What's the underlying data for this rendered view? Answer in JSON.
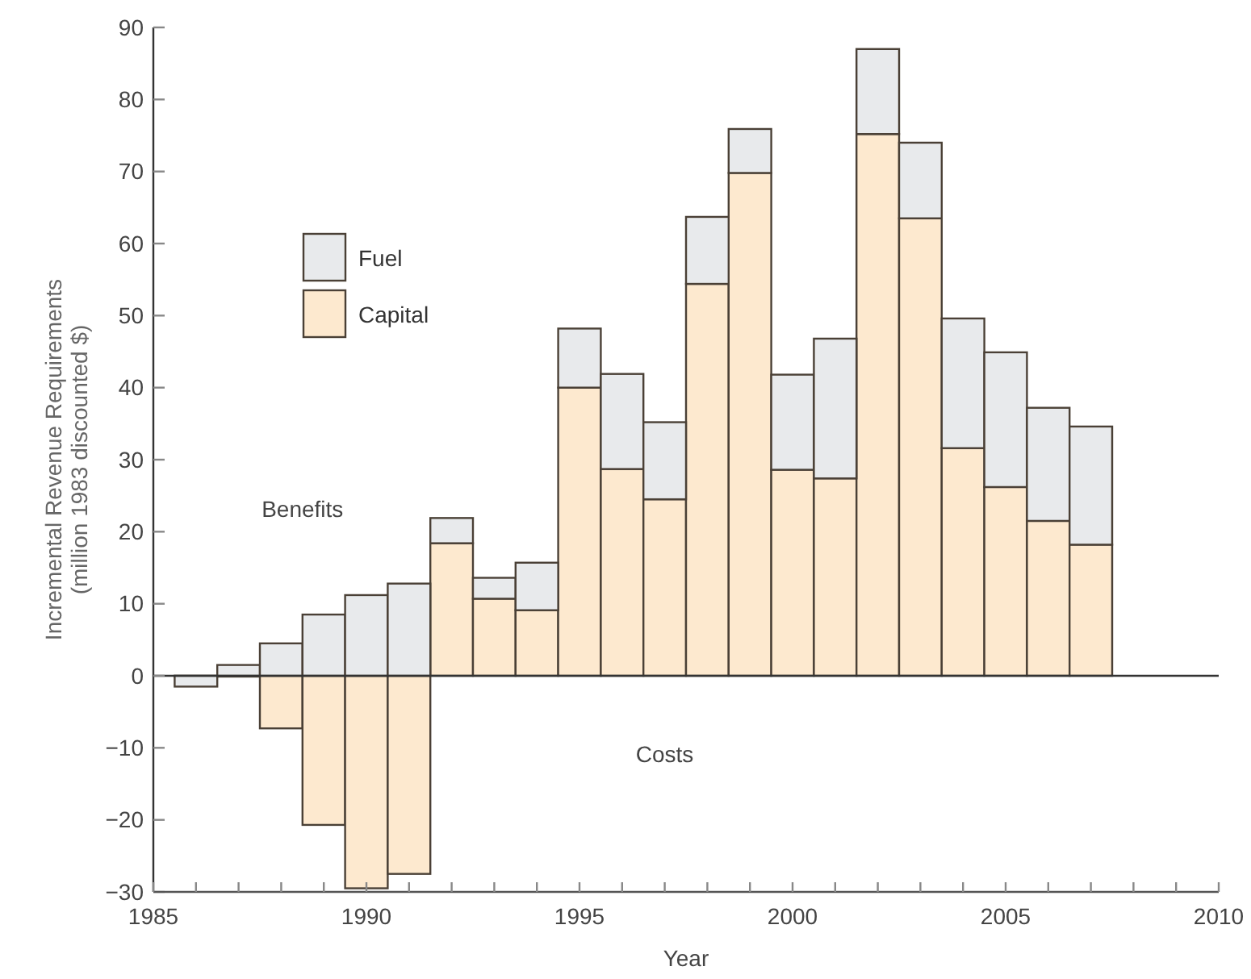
{
  "chart_data": {
    "type": "bar",
    "stacked": true,
    "xlabel": "Year",
    "ylabel": "Incremental Revenue Requirements\n(million 1983 discounted $)",
    "x": [
      1986,
      1987,
      1988,
      1989,
      1990,
      1991,
      1992,
      1993,
      1994,
      1995,
      1996,
      1997,
      1998,
      1999,
      2000,
      2001,
      2002,
      2003,
      2004,
      2005,
      2006,
      2007
    ],
    "series": [
      {
        "name": "Capital",
        "color": "#fde9cf",
        "values": [
          0,
          0,
          -7.3,
          -20.7,
          -29.5,
          -27.5,
          18.4,
          10.7,
          9.1,
          40.0,
          28.7,
          24.5,
          54.4,
          69.8,
          28.6,
          27.4,
          75.2,
          63.5,
          31.6,
          26.2,
          21.5,
          18.2
        ]
      },
      {
        "name": "Fuel",
        "color": "#e8eaec",
        "values": [
          -1.5,
          1.5,
          4.5,
          8.5,
          11.2,
          12.8,
          3.5,
          2.9,
          6.6,
          8.2,
          13.2,
          10.7,
          9.3,
          6.1,
          13.2,
          19.4,
          11.8,
          10.5,
          18.0,
          18.7,
          15.7,
          16.4
        ]
      }
    ],
    "xlim": [
      1985,
      2010
    ],
    "xticks": [
      1985,
      {
        "value": 1986,
        "label": null
      },
      {
        "value": 1987,
        "label": null
      },
      {
        "value": 1988,
        "label": null
      },
      {
        "value": 1989,
        "label": null
      },
      1990,
      {
        "value": 1991,
        "label": null
      },
      {
        "value": 1992,
        "label": null
      },
      {
        "value": 1993,
        "label": null
      },
      {
        "value": 1994,
        "label": null
      },
      1995,
      {
        "value": 1996,
        "label": null
      },
      {
        "value": 1997,
        "label": null
      },
      {
        "value": 1998,
        "label": null
      },
      {
        "value": 1999,
        "label": null
      },
      2000,
      {
        "value": 2001,
        "label": null
      },
      {
        "value": 2002,
        "label": null
      },
      {
        "value": 2003,
        "label": null
      },
      {
        "value": 2004,
        "label": null
      },
      2005,
      {
        "value": 2006,
        "label": null
      },
      {
        "value": 2007,
        "label": null
      },
      {
        "value": 2008,
        "label": null
      },
      {
        "value": 2009,
        "label": null
      },
      2010
    ],
    "ylim": [
      -30,
      90
    ],
    "yticks": [
      {
        "value": -30,
        "label": "−30"
      },
      {
        "value": -20,
        "label": "−20"
      },
      {
        "value": -10,
        "label": "−10"
      },
      0,
      10,
      20,
      30,
      40,
      50,
      60,
      70,
      80,
      90
    ],
    "ref_lines": [
      {
        "axis": "y",
        "value": 0,
        "color": "#333333"
      }
    ],
    "annotations": [
      "Benefits",
      "Costs"
    ],
    "legend": "top left",
    "grid": false
  }
}
